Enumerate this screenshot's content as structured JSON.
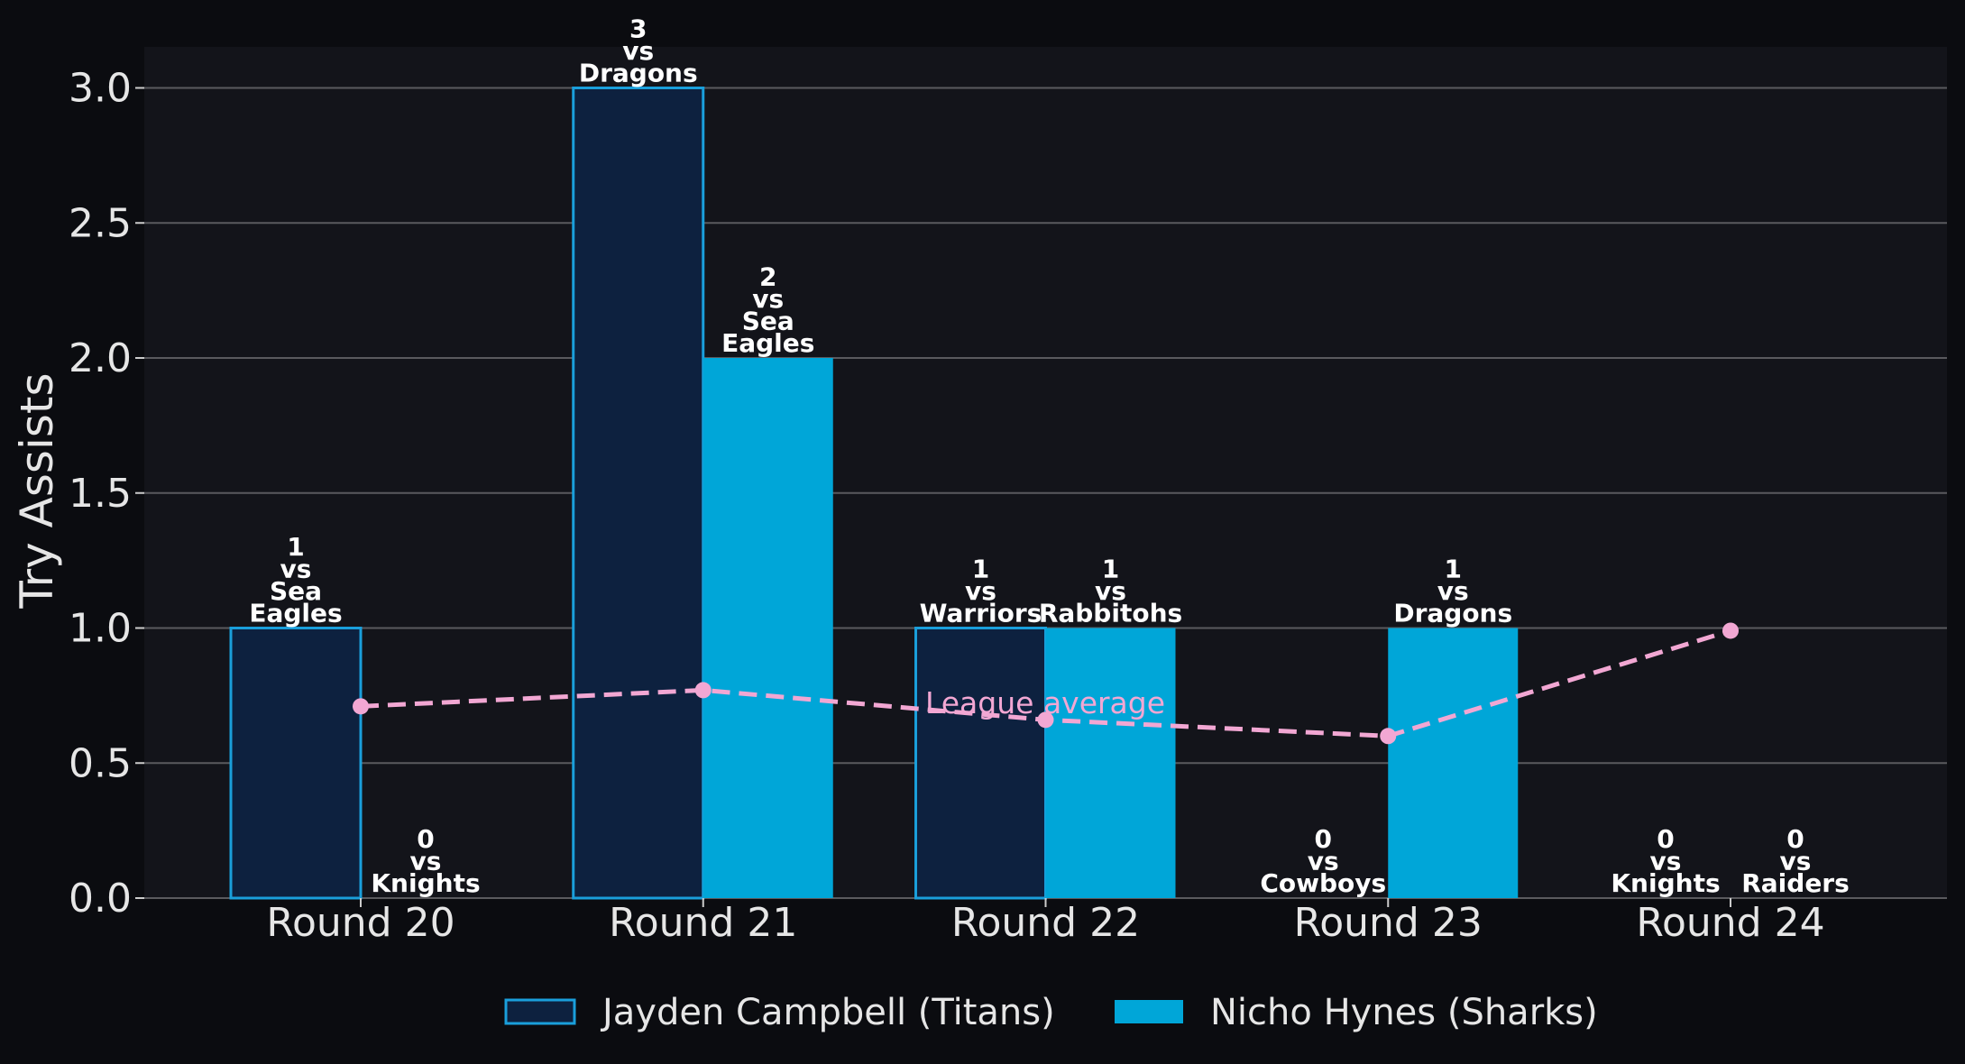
{
  "chart_data": {
    "type": "bar",
    "categories": [
      "Round 20",
      "Round 21",
      "Round 22",
      "Round 23",
      "Round 24"
    ],
    "ylabel": "Try Assists",
    "xlabel": "",
    "ylim": [
      0,
      3.15
    ],
    "yticks": [
      "0.0",
      "0.5",
      "1.0",
      "1.5",
      "2.0",
      "2.5",
      "3.0"
    ],
    "grid": "horizontal",
    "legend_position": "bottom-center",
    "series": [
      {
        "name": "Jayden Campbell (Titans)",
        "values": [
          1,
          3,
          1,
          0,
          0
        ],
        "labels": [
          "1\nvs\nSea\nEagles",
          "3\nvs\nDragons",
          "1\nvs\nWarriors",
          "0\nvs\nCowboys",
          "0\nvs\nKnights"
        ]
      },
      {
        "name": "Nicho Hynes (Sharks)",
        "values": [
          0,
          2,
          1,
          1,
          0
        ],
        "labels": [
          "0\nvs\nKnights",
          "2\nvs\nSea\nEagles",
          "1\nvs\nRabbitohs",
          "1\nvs\nDragons",
          "0\nvs\nRaiders"
        ]
      }
    ],
    "league_average": {
      "values": [
        0.71,
        0.77,
        0.66,
        0.6,
        0.99
      ],
      "annotation": "League average"
    },
    "colors": {
      "background": "#0b0c10",
      "plot_background": "#13141a",
      "grid": "#5a5a5e",
      "series_1_fill": "#0d213f",
      "series_1_edge": "#1a9fdb",
      "series_2_fill": "#00a6d8",
      "average_line": "#f2a7d3",
      "text": "#e6e6e6"
    }
  }
}
